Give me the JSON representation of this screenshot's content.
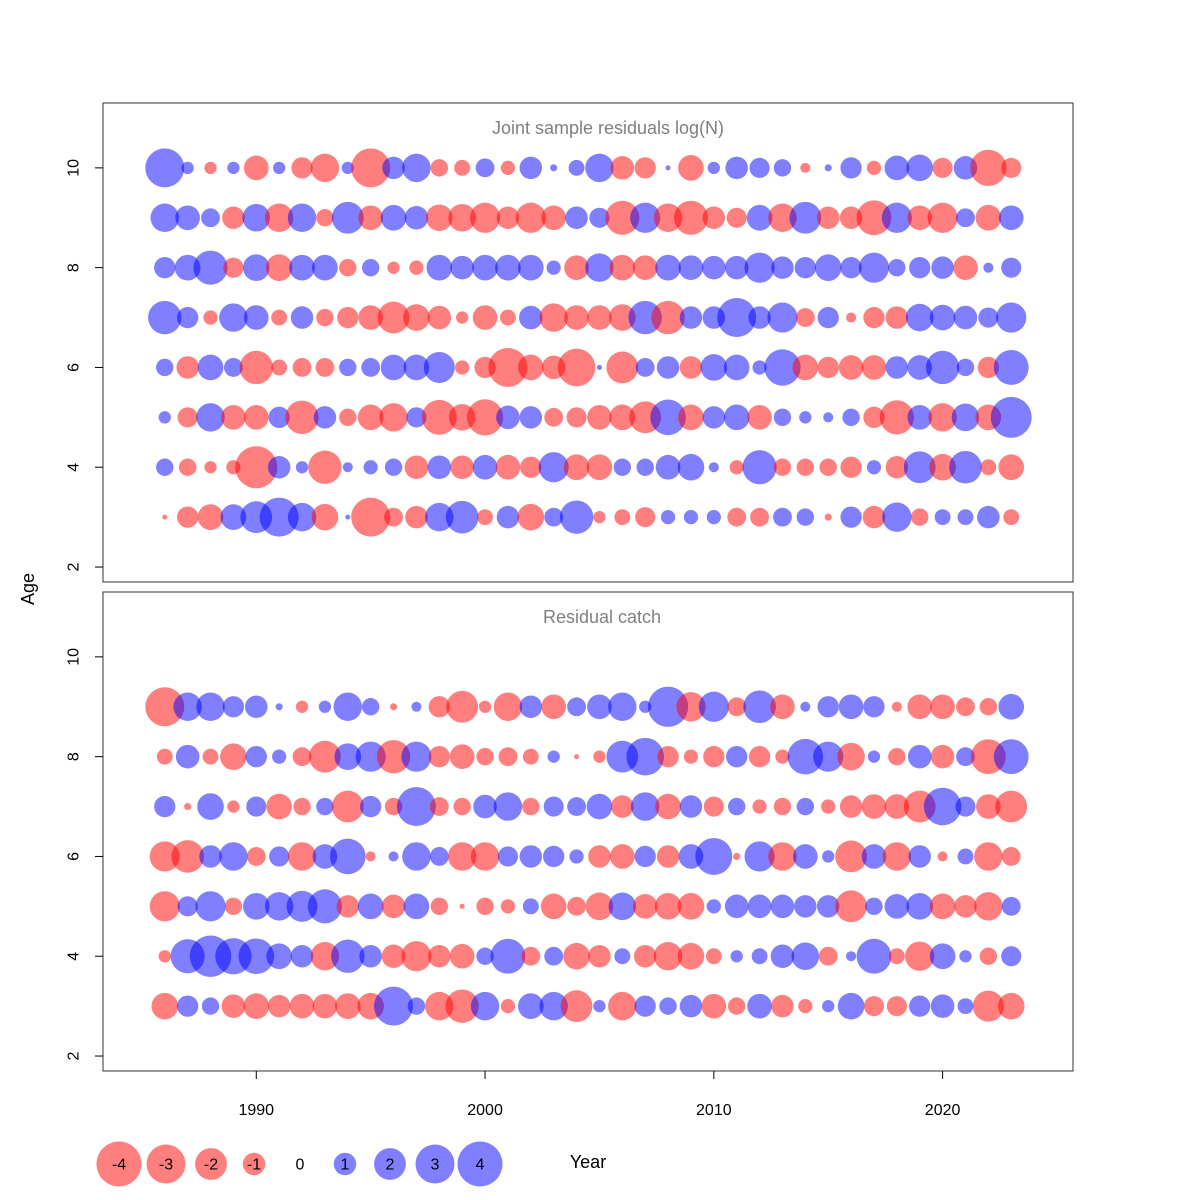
{
  "chart_data": {
    "type": "scatter",
    "subtype": "bubble",
    "xlabel": "Year",
    "ylabel": "Age",
    "x_ticks": [
      1990,
      2000,
      2010,
      2020
    ],
    "y_ticks": [
      2,
      4,
      6,
      8,
      10
    ],
    "xlim": [
      1983.3,
      2025.7
    ],
    "ylim": [
      1.7,
      11.3
    ],
    "grid": false,
    "colors": {
      "negative": "#ff0000",
      "positive": "#0000ff",
      "alpha": 0.5
    },
    "years": [
      1986,
      1987,
      1988,
      1989,
      1990,
      1991,
      1992,
      1993,
      1994,
      1995,
      1996,
      1997,
      1998,
      1999,
      2000,
      2001,
      2002,
      2003,
      2004,
      2005,
      2006,
      2007,
      2008,
      2009,
      2010,
      2011,
      2012,
      2013,
      2014,
      2015,
      2016,
      2017,
      2018,
      2019,
      2020,
      2021,
      2022,
      2023
    ],
    "legend": {
      "placement": "bottom-left",
      "values": [
        -4,
        -3,
        -2,
        -1,
        0,
        1,
        2,
        3,
        4
      ],
      "labels": [
        "-4",
        "-3",
        "-2",
        "-1",
        "0",
        "1",
        "2",
        "3",
        "4"
      ]
    },
    "panels": [
      {
        "title": "Joint sample residuals log(N)",
        "ages": [
          3,
          4,
          5,
          6,
          7,
          8,
          9,
          10
        ],
        "residuals": {
          "10": [
            3.0,
            0.3,
            -0.3,
            0.3,
            -1.2,
            0.3,
            -0.9,
            -1.6,
            0.3,
            -3.0,
            1.0,
            1.6,
            -0.6,
            -0.5,
            0.7,
            -0.4,
            1.0,
            0.1,
            0.5,
            1.6,
            -1.1,
            -0.9,
            0.05,
            -1.3,
            0.3,
            1.0,
            0.8,
            0.6,
            -0.2,
            0.1,
            0.9,
            -0.4,
            1.2,
            1.4,
            -0.8,
            1.1,
            -2.6,
            -0.8
          ],
          "9": [
            1.6,
            1.2,
            0.7,
            -1.0,
            1.5,
            -1.6,
            1.6,
            -0.6,
            2.0,
            -1.2,
            1.3,
            1.1,
            -1.4,
            -1.5,
            -1.8,
            -1.0,
            -1.8,
            -1.2,
            1.0,
            0.8,
            -2.3,
            1.8,
            -1.6,
            -2.3,
            -1.0,
            -0.8,
            1.3,
            -1.6,
            2.0,
            -1.0,
            -1.0,
            -2.4,
            1.8,
            -1.2,
            -1.8,
            0.7,
            -1.3,
            1.2
          ],
          "8": [
            0.9,
            1.3,
            2.3,
            -0.8,
            1.4,
            -1.4,
            1.3,
            1.3,
            -0.6,
            0.6,
            -0.3,
            -0.4,
            1.3,
            1.1,
            1.3,
            1.3,
            1.3,
            0.4,
            -1.2,
            1.6,
            -1.3,
            -1.2,
            1.3,
            1.2,
            1.1,
            1.1,
            1.8,
            1.0,
            0.9,
            1.4,
            0.9,
            1.8,
            0.6,
            0.9,
            1.0,
            -1.2,
            0.2,
            0.8
          ],
          "7": [
            2.2,
            0.9,
            -0.4,
            1.6,
            1.2,
            -0.5,
            1.0,
            -0.6,
            -0.9,
            -1.2,
            -2.0,
            -1.4,
            -1.1,
            -0.3,
            -1.2,
            -0.5,
            1.1,
            -1.6,
            -1.2,
            -1.2,
            -1.4,
            2.2,
            -2.2,
            1.0,
            1.0,
            3.0,
            1.0,
            1.8,
            -0.7,
            0.9,
            -0.2,
            -0.9,
            -1.0,
            1.5,
            1.3,
            1.1,
            0.8,
            1.8
          ],
          "6": [
            0.6,
            -1.0,
            1.3,
            0.7,
            -2.2,
            -0.5,
            -0.7,
            -0.7,
            0.6,
            0.7,
            1.3,
            1.3,
            1.9,
            -0.4,
            -0.9,
            -3.0,
            -1.3,
            -1.1,
            -2.8,
            0.05,
            -2.0,
            0.7,
            1.0,
            -1.0,
            1.4,
            1.3,
            0.4,
            2.6,
            -1.3,
            -0.9,
            -1.2,
            -1.2,
            1.0,
            1.2,
            2.2,
            0.6,
            -0.9,
            2.4
          ],
          "5": [
            0.3,
            -0.8,
            1.6,
            -1.2,
            -1.2,
            0.9,
            -2.2,
            1.0,
            -0.6,
            -1.3,
            -1.6,
            0.8,
            -2.4,
            -1.4,
            -2.6,
            1.1,
            1.0,
            -0.7,
            -0.8,
            -1.2,
            -1.3,
            -2.0,
            2.5,
            -1.3,
            1.0,
            1.3,
            -1.2,
            0.6,
            0.3,
            0.2,
            0.6,
            -0.9,
            -2.3,
            1.2,
            -1.6,
            1.5,
            -1.3,
            3.3
          ],
          "4": [
            0.6,
            -0.6,
            -0.3,
            -0.4,
            -3.5,
            1.0,
            0.3,
            -2.2,
            0.2,
            0.4,
            0.6,
            -1.1,
            1.1,
            -1.1,
            1.2,
            -1.2,
            -0.9,
            1.8,
            -1.3,
            -1.3,
            0.6,
            0.6,
            1.2,
            1.4,
            0.2,
            -0.4,
            2.3,
            -0.6,
            -0.6,
            -0.6,
            -0.9,
            0.4,
            -1.0,
            2.0,
            -1.4,
            2.1,
            -0.5,
            -1.3
          ],
          "3": [
            -0.05,
            -0.9,
            -1.3,
            1.3,
            2.0,
            3.0,
            1.6,
            -1.4,
            0.05,
            -3.0,
            -0.7,
            -1.0,
            1.6,
            2.1,
            -0.5,
            1.0,
            -1.4,
            0.7,
            2.2,
            -0.3,
            -0.5,
            -0.8,
            0.4,
            0.4,
            0.4,
            -0.7,
            -0.7,
            0.7,
            0.6,
            -0.1,
            0.9,
            -1.0,
            1.7,
            -0.6,
            0.5,
            0.5,
            1.0,
            -0.5
          ]
        }
      },
      {
        "title": "Residual catch",
        "ages": [
          3,
          4,
          5,
          6,
          7,
          8,
          9
        ],
        "residuals": {
          "9": [
            -3.0,
            1.6,
            1.6,
            0.9,
            1.0,
            0.1,
            -0.3,
            0.3,
            1.6,
            0.6,
            -0.1,
            0.2,
            -0.9,
            -2.0,
            -0.3,
            -1.6,
            1.0,
            -1.2,
            0.7,
            1.2,
            1.6,
            0.3,
            3.2,
            -1.7,
            1.8,
            -0.7,
            2.1,
            -1.2,
            0.2,
            0.9,
            1.2,
            0.9,
            -0.2,
            -1.2,
            -1.2,
            -0.7,
            -0.6,
            1.3
          ],
          "8": [
            -0.5,
            1.1,
            -0.5,
            -1.4,
            0.9,
            0.4,
            -0.7,
            -2.0,
            1.4,
            1.8,
            -2.2,
            1.8,
            -0.9,
            -1.2,
            -0.6,
            -0.7,
            -0.5,
            0.3,
            -0.05,
            -0.3,
            2.0,
            2.8,
            -0.9,
            -0.4,
            -0.9,
            0.9,
            -0.9,
            -0.4,
            2.5,
            1.8,
            -1.5,
            0.3,
            -0.6,
            1.1,
            -1.1,
            0.7,
            -2.4,
            2.4
          ],
          "7": [
            0.9,
            -0.1,
            1.4,
            -0.3,
            0.8,
            -1.3,
            -0.6,
            0.6,
            -2.0,
            0.9,
            -0.6,
            3.0,
            -0.7,
            -0.6,
            1.1,
            1.6,
            -0.6,
            0.8,
            0.7,
            1.3,
            -1.0,
            1.6,
            -1.3,
            1.0,
            -0.8,
            0.6,
            -0.4,
            -0.6,
            0.6,
            -0.4,
            -1.0,
            -1.2,
            -1.2,
            -2.0,
            2.8,
            0.8,
            -1.2,
            -2.0
          ],
          "6": [
            -1.8,
            -2.1,
            1.0,
            1.6,
            -0.7,
            0.8,
            -1.6,
            1.2,
            2.5,
            -0.2,
            0.2,
            1.6,
            0.7,
            -1.6,
            -1.6,
            0.8,
            1.0,
            0.9,
            0.4,
            -1.0,
            -1.2,
            0.9,
            -1.0,
            1.2,
            2.7,
            -0.1,
            1.8,
            -1.6,
            1.2,
            0.3,
            -2.0,
            1.2,
            -1.6,
            1.0,
            -0.2,
            0.5,
            -1.6,
            -0.7
          ],
          "5": [
            -1.8,
            0.8,
            1.8,
            -0.6,
            1.4,
            1.6,
            1.9,
            2.3,
            -1.0,
            1.3,
            -1.1,
            1.3,
            -0.6,
            -0.05,
            -0.6,
            -0.4,
            0.5,
            -1.3,
            -0.7,
            -1.5,
            1.5,
            -1.2,
            -1.4,
            -1.4,
            0.4,
            1.1,
            1.1,
            1.1,
            1.0,
            1.0,
            -2.0,
            0.6,
            1.2,
            1.4,
            -1.3,
            -1.0,
            -1.6,
            0.7
          ],
          "4": [
            -0.3,
            2.3,
            3.4,
            2.6,
            2.5,
            1.3,
            1.0,
            -1.6,
            2.2,
            1.0,
            -1.1,
            -1.8,
            -1.0,
            -1.2,
            0.6,
            2.4,
            -0.7,
            0.7,
            -1.4,
            -1.0,
            0.5,
            -1.0,
            -1.6,
            -1.4,
            -0.5,
            0.3,
            0.5,
            1.1,
            1.5,
            -0.7,
            0.2,
            2.4,
            -0.5,
            -1.7,
            1.3,
            0.3,
            -0.6,
            0.8
          ],
          "3": [
            -1.4,
            0.9,
            0.6,
            -1.1,
            -1.3,
            -1.0,
            -1.2,
            -1.2,
            -1.3,
            -1.4,
            3.0,
            0.6,
            -1.6,
            -2.2,
            1.6,
            -0.4,
            1.3,
            1.6,
            -2.0,
            0.3,
            -1.6,
            0.9,
            0.6,
            1.0,
            -1.2,
            -0.6,
            1.2,
            -1.0,
            -0.4,
            0.3,
            1.4,
            -0.8,
            -0.8,
            0.9,
            1.1,
            0.5,
            -1.9,
            -1.4
          ]
        }
      }
    ]
  }
}
